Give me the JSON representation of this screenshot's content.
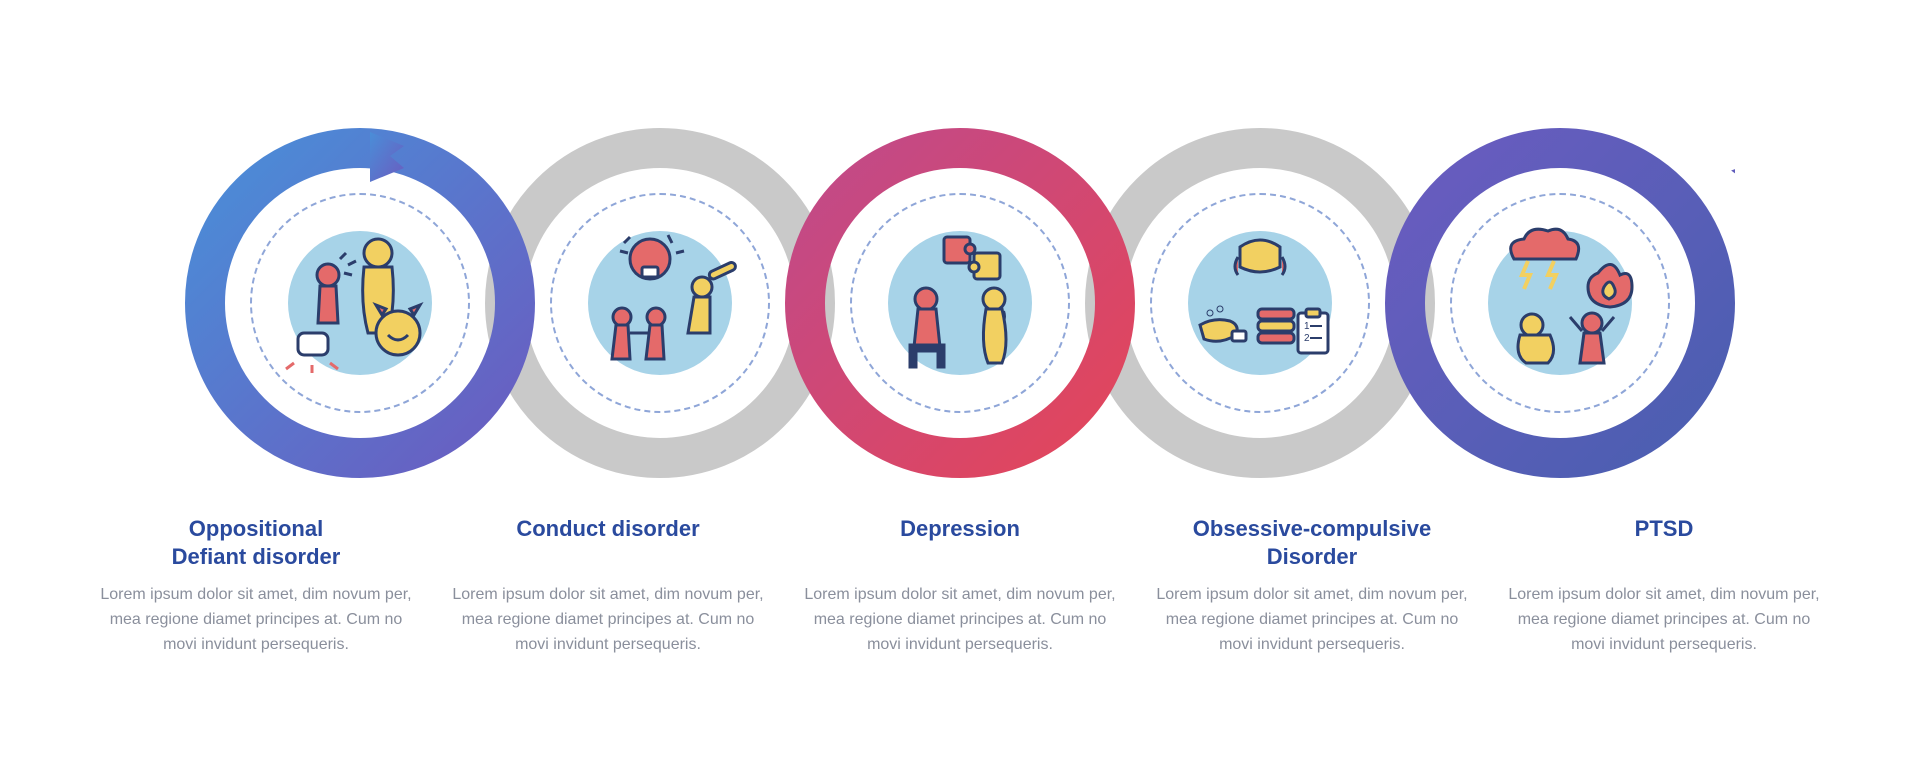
{
  "layout": {
    "item_count": 5,
    "ring_diameter": 350,
    "ring_stroke": 40,
    "ring_spacing": 300,
    "inner_dash_color": "#8fa6d8",
    "inner_disc_diameter": 220,
    "gray_ring_color": "#c9c9c9",
    "background": "#ffffff"
  },
  "typography": {
    "title_color": "#2a4a9e",
    "title_fontsize": 22,
    "title_weight": 700,
    "body_color": "#8a8f9c",
    "body_fontsize": 16
  },
  "palette": {
    "blue": "#4a8ed8",
    "purple": "#6a5cc0",
    "magenta": "#c04a8a",
    "red": "#e3455a",
    "salmon": "#e46a6a",
    "yellow": "#f2d061",
    "lightblue_fill": "#a7d3e8",
    "line_navy": "#2b3d6b"
  },
  "gradients": {
    "g1": [
      "#4a8ed8",
      "#6a5cc0"
    ],
    "g2": [
      "#6a5cc0",
      "#c04a8a"
    ],
    "g3": [
      "#c04a8a",
      "#e3455a"
    ],
    "g4": [
      "#e3455a",
      "#6a5cc0"
    ],
    "g5": [
      "#6a5cc0",
      "#4a5fb0"
    ]
  },
  "items": [
    {
      "id": "oppositional-defiant",
      "title": "Oppositional\nDefiant disorder",
      "body": "Lorem ipsum dolor sit amet, dim novum per, mea regione diamet principes at. Cum no movi invidunt persequeris.",
      "ring_style": "gradient",
      "gradient": "g1",
      "arrow": "start",
      "icon": "odd"
    },
    {
      "id": "conduct-disorder",
      "title": "Conduct disorder",
      "body": "Lorem ipsum dolor sit amet, dim novum per, mea regione diamet principes at. Cum no movi invidunt persequeris.",
      "ring_style": "gray",
      "gradient": "g2",
      "icon": "conduct"
    },
    {
      "id": "depression",
      "title": "Depression",
      "body": "Lorem ipsum dolor sit amet, dim novum per, mea regione diamet principes at. Cum no movi invidunt persequeris.",
      "ring_style": "gradient",
      "gradient": "g3",
      "icon": "depression"
    },
    {
      "id": "ocd",
      "title": "Obsessive-compulsive\nDisorder",
      "body": "Lorem ipsum dolor sit amet, dim novum per, mea regione diamet principes at. Cum no movi invidunt persequeris.",
      "ring_style": "gray",
      "gradient": "g4",
      "icon": "ocd"
    },
    {
      "id": "ptsd",
      "title": "PTSD",
      "body": "Lorem ipsum dolor sit amet, dim novum per, mea regione diamet principes at. Cum no movi invidunt persequeris.",
      "ring_style": "gradient",
      "gradient": "g5",
      "arrow": "end",
      "icon": "ptsd"
    }
  ]
}
